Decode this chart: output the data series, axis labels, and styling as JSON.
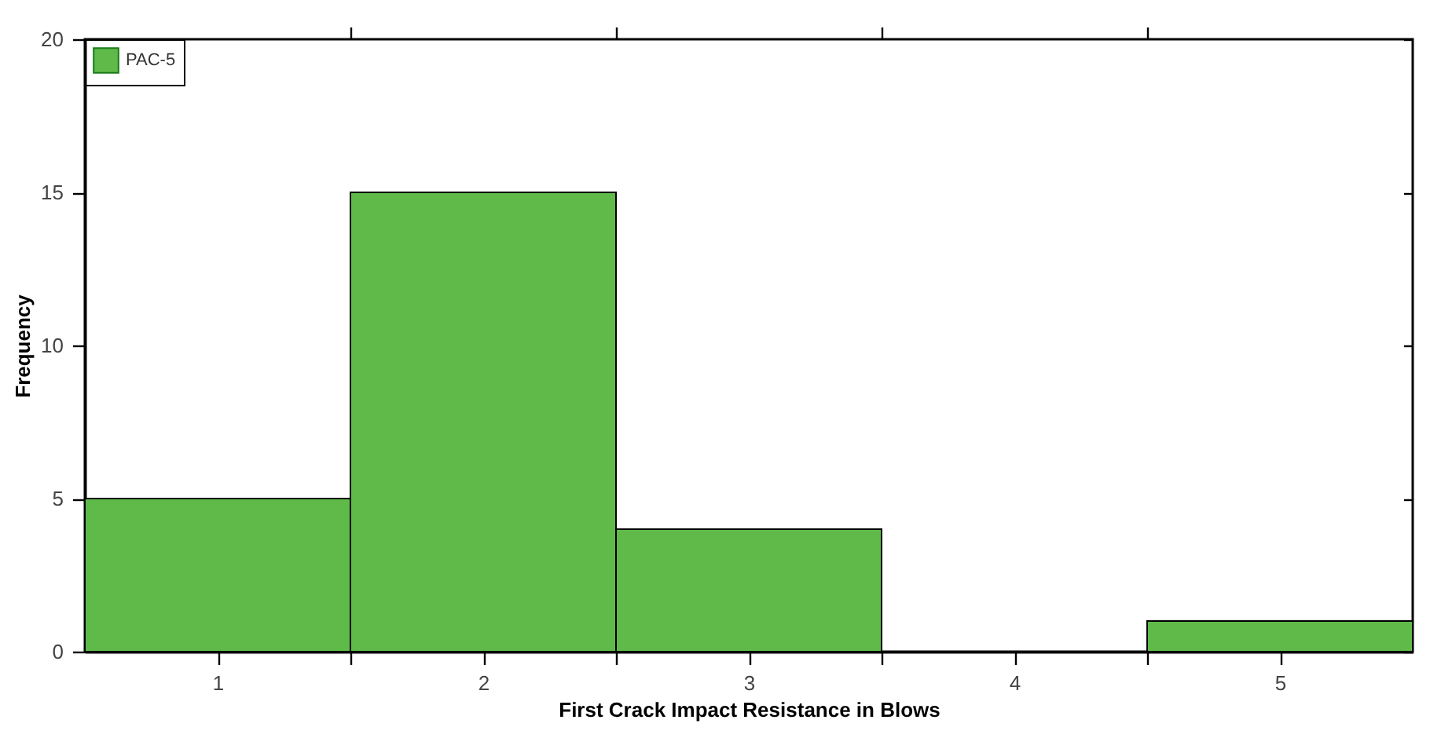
{
  "chart_data": {
    "type": "histogram",
    "xlabel": "First Crack Impact Resistance in Blows",
    "ylabel": "Frequency",
    "bins": [
      0.5,
      1.5,
      2.5,
      3.5,
      4.5,
      5.5
    ],
    "series": [
      {
        "name": "PAC-5",
        "color": "#5fba4a",
        "values": [
          5,
          15,
          4,
          0,
          1
        ]
      }
    ],
    "xlim": [
      0.5,
      5.5
    ],
    "ylim": [
      0,
      20
    ],
    "xticks": [
      1,
      2,
      3,
      4,
      5,
      {
        "value": 1.5,
        "label": null
      },
      {
        "value": 2.5,
        "label": null
      },
      {
        "value": 3.5,
        "label": null
      },
      {
        "value": 4.5,
        "label": null
      }
    ],
    "yticks": [
      0,
      5,
      10,
      15,
      20
    ],
    "legend": "top left",
    "grid": false
  }
}
